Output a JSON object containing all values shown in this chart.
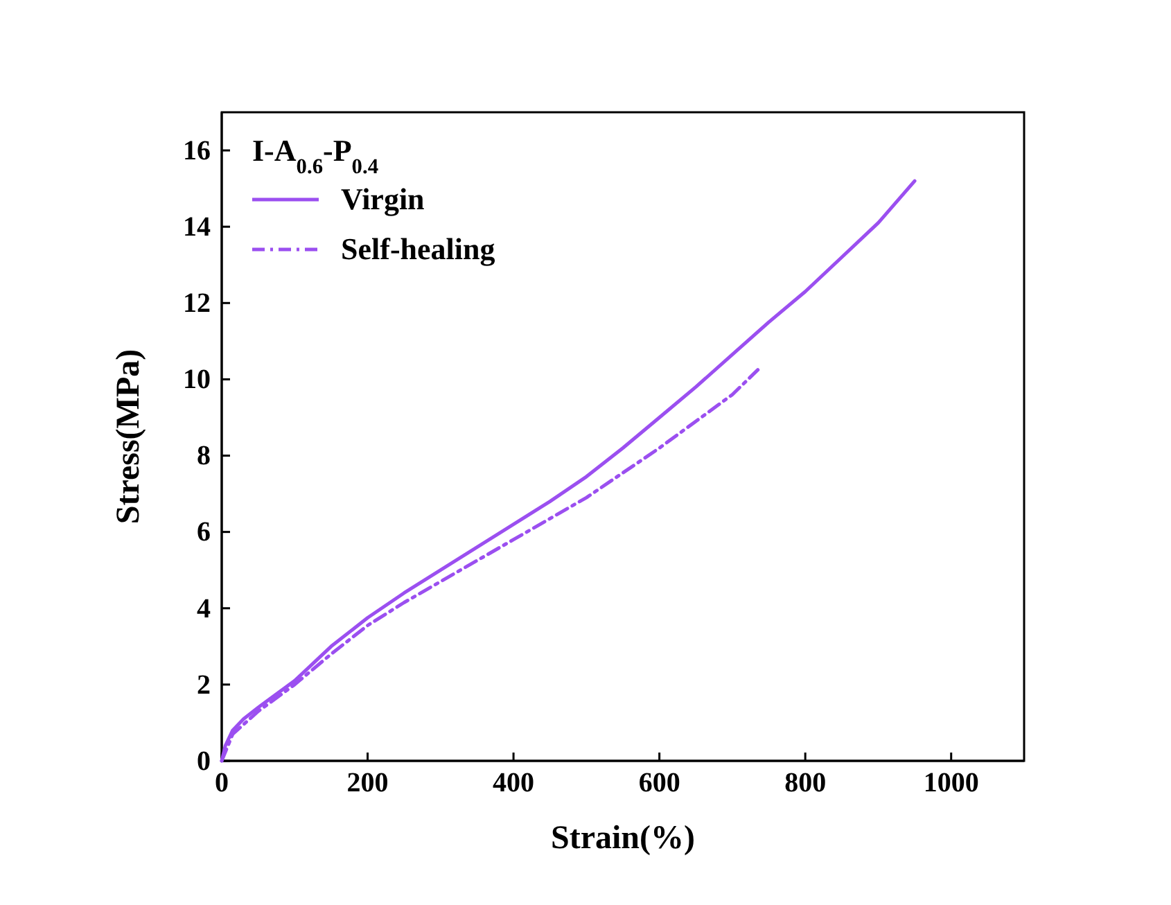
{
  "chart_data": {
    "type": "line",
    "xlabel": "Strain(%)",
    "ylabel": "Stress(MPa)",
    "legend_title": "I-A$_{0.6}$-P$_{0.4}$",
    "legend": "top left",
    "grid": false,
    "marker": "none",
    "xlim": [
      0,
      1100
    ],
    "xticks": [
      0,
      200,
      400,
      600,
      800,
      1000
    ],
    "ylim": [
      0,
      17
    ],
    "yticks": [
      0,
      2,
      4,
      6,
      8,
      10,
      12,
      14,
      16
    ],
    "series": [
      {
        "name": "Virgin",
        "color": "#9b4ff0",
        "line_style": "solid",
        "x": [
          0,
          5,
          15,
          30,
          50,
          100,
          150,
          200,
          250,
          300,
          350,
          400,
          450,
          500,
          550,
          600,
          650,
          700,
          750,
          800,
          850,
          900,
          950
        ],
        "values": [
          0,
          0.4,
          0.8,
          1.1,
          1.4,
          2.1,
          3.0,
          3.75,
          4.4,
          5.0,
          5.6,
          6.2,
          6.8,
          7.45,
          8.2,
          9.0,
          9.8,
          10.65,
          11.5,
          12.3,
          13.2,
          14.1,
          15.2
        ]
      },
      {
        "name": "Self-healing",
        "color": "#9b4ff0",
        "line_style": "dashdot",
        "x": [
          0,
          15,
          50,
          100,
          150,
          200,
          250,
          300,
          350,
          400,
          450,
          500,
          550,
          600,
          650,
          700,
          735
        ],
        "values": [
          0,
          0.7,
          1.3,
          2.0,
          2.8,
          3.55,
          4.15,
          4.7,
          5.25,
          5.8,
          6.35,
          6.9,
          7.55,
          8.2,
          8.9,
          9.6,
          10.25
        ]
      }
    ]
  }
}
